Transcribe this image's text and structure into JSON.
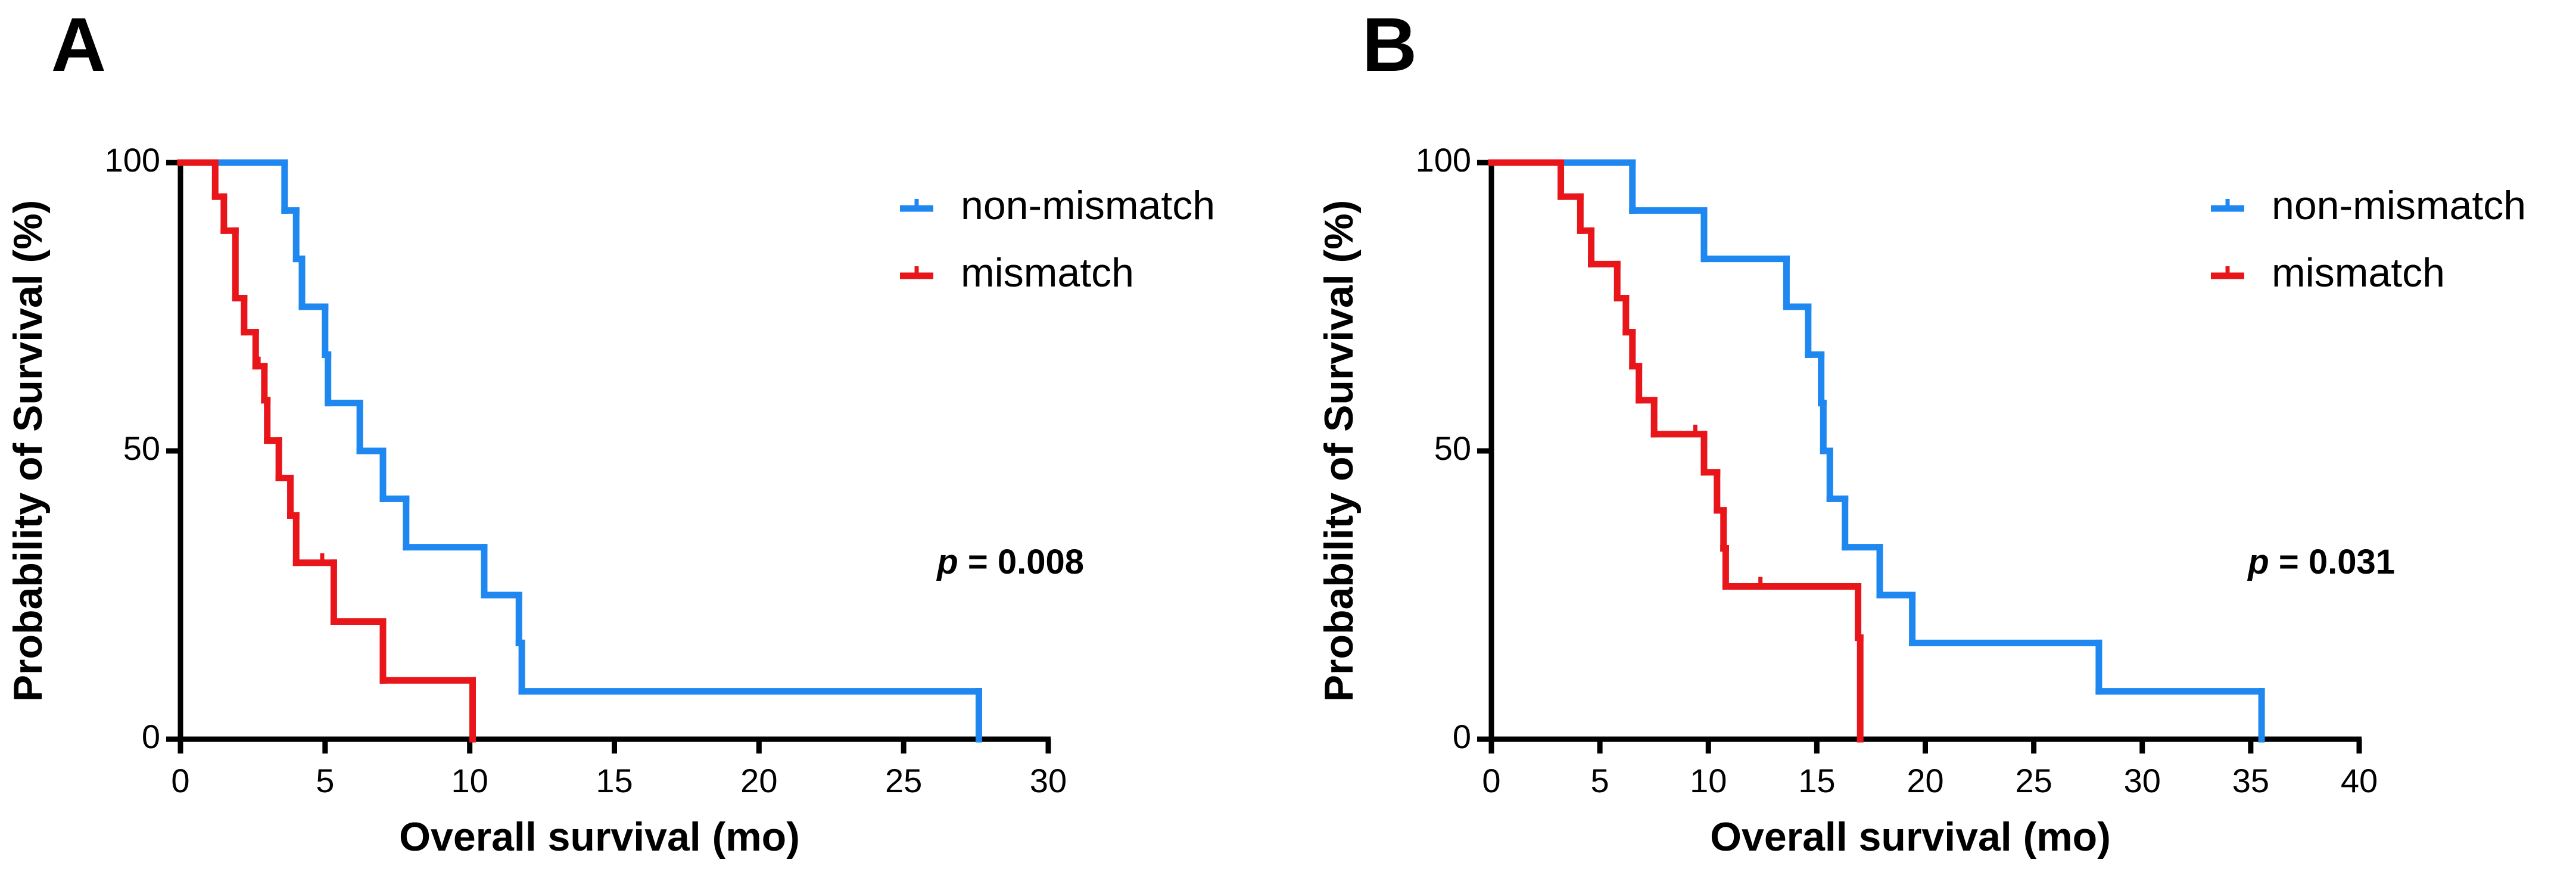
{
  "chart_data": [
    {
      "type": "step",
      "panel_label": "A",
      "xlabel": "Overall survival (mo)",
      "ylabel": "Probability of Survival (%)",
      "xlim": [
        0,
        30
      ],
      "xticks": [
        0,
        5,
        10,
        15,
        20,
        25,
        30
      ],
      "ylim": [
        0,
        100
      ],
      "yticks": [
        0,
        50,
        100
      ],
      "legend": "upper right",
      "p_label": "p",
      "p_value": "= 0.008",
      "series": [
        {
          "name": "non-mismatch",
          "color": "#1f87f0",
          "x": [
            0,
            3.6,
            4.0,
            4.2,
            5.0,
            5.1,
            6.2,
            7.0,
            7.8,
            10.5,
            11.7,
            11.8,
            27.6
          ],
          "values": [
            100,
            91.7,
            83.3,
            75,
            66.7,
            58.3,
            50,
            41.7,
            33.3,
            25,
            16.7,
            8.3,
            0
          ],
          "censored_x": [],
          "censored_values": []
        },
        {
          "name": "mismatch",
          "color": "#e8161b",
          "x": [
            0,
            1.2,
            1.5,
            1.9,
            2.2,
            2.6,
            2.9,
            3.0,
            3.4,
            3.8,
            4.0,
            5.3,
            7.0,
            10.1
          ],
          "values": [
            100,
            94.1,
            88.2,
            76.5,
            70.6,
            64.7,
            58.8,
            51.8,
            45.3,
            38.8,
            30.6,
            20.4,
            10.2,
            0
          ],
          "censored_x": [
            2.7,
            4.9
          ],
          "censored_values": [
            64.7,
            30.6
          ]
        }
      ]
    },
    {
      "type": "step",
      "panel_label": "B",
      "xlabel": "Overall survival (mo)",
      "ylabel": "Probability of Survival (%)",
      "xlim": [
        0,
        40
      ],
      "xticks": [
        0,
        5,
        10,
        15,
        20,
        25,
        30,
        35,
        40
      ],
      "ylim": [
        0,
        100
      ],
      "yticks": [
        0,
        50,
        100
      ],
      "legend": "upper right",
      "p_label": "p",
      "p_value": "= 0.031",
      "series": [
        {
          "name": "non-mismatch",
          "color": "#1f87f0",
          "x": [
            0,
            6.5,
            9.8,
            13.6,
            14.6,
            15.2,
            15.3,
            15.6,
            16.3,
            17.9,
            19.4,
            28.0,
            35.5
          ],
          "values": [
            100,
            91.7,
            83.3,
            75,
            66.7,
            58.3,
            50,
            41.7,
            33.3,
            25,
            16.7,
            8.3,
            0
          ],
          "censored_x": [],
          "censored_values": []
        },
        {
          "name": "mismatch",
          "color": "#e8161b",
          "x": [
            0,
            3.2,
            4.1,
            4.6,
            5.8,
            6.2,
            6.5,
            6.8,
            7.5,
            9.8,
            10.4,
            10.7,
            10.8,
            16.9,
            17.0
          ],
          "values": [
            100,
            94.1,
            88.2,
            82.4,
            76.5,
            70.6,
            64.7,
            58.8,
            52.9,
            46.3,
            39.7,
            33.1,
            26.5,
            17.6,
            0
          ],
          "censored_x": [
            9.4,
            12.4
          ],
          "censored_values": [
            52.9,
            26.5
          ]
        }
      ]
    }
  ]
}
